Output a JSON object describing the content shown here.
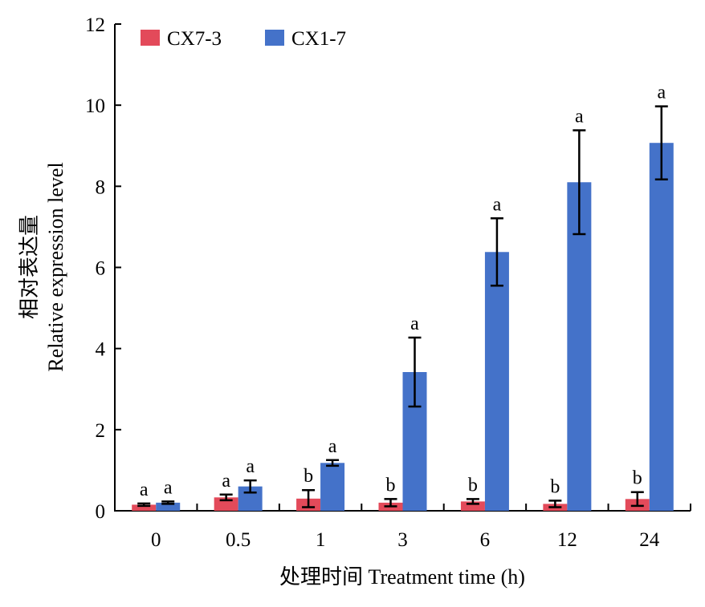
{
  "chart_data": {
    "type": "bar",
    "xlabel": "处理时间 Treatment time (h)",
    "ylabel_line1": "相对表达量",
    "ylabel_line2": "Relative expression level",
    "categories": [
      "0",
      "0.5",
      "1",
      "3",
      "6",
      "12",
      "24"
    ],
    "ylim": [
      0,
      12
    ],
    "yticks": [
      0,
      2,
      4,
      6,
      8,
      10,
      12
    ],
    "legend_position": "top-left",
    "grid": false,
    "series": [
      {
        "name": "CX7-3",
        "color": "#e34a5a",
        "values": [
          0.15,
          0.33,
          0.3,
          0.2,
          0.23,
          0.17,
          0.29
        ],
        "errors": [
          0.03,
          0.07,
          0.21,
          0.09,
          0.06,
          0.08,
          0.17
        ],
        "labels": [
          "a",
          "a",
          "b",
          "b",
          "b",
          "b",
          "b"
        ]
      },
      {
        "name": "CX1-7",
        "color": "#4472c9",
        "values": [
          0.2,
          0.6,
          1.18,
          3.42,
          6.38,
          8.1,
          9.07
        ],
        "errors": [
          0.03,
          0.15,
          0.07,
          0.85,
          0.83,
          1.28,
          0.9
        ],
        "labels": [
          "a",
          "a",
          "a",
          "a",
          "a",
          "a",
          "a"
        ]
      }
    ]
  }
}
